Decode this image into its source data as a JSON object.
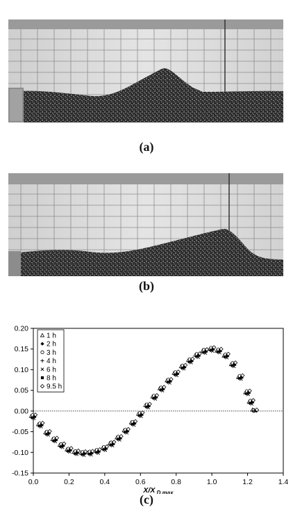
{
  "figure": {
    "caption_a": "(a)",
    "caption_b": "(b)",
    "caption_c": "(c)"
  },
  "chart_data": {
    "type": "scatter",
    "title": "",
    "xlabel": "X/X D,max",
    "ylabel": "",
    "xlim": [
      0.0,
      1.4
    ],
    "ylim": [
      -0.15,
      0.2
    ],
    "x_ticks": [
      "0.0",
      "0.2",
      "0.4",
      "0.6",
      "0.8",
      "1.0",
      "1.2",
      "1.4"
    ],
    "y_ticks": [
      "-0.15",
      "-0.10",
      "-0.05",
      "0.00",
      "0.05",
      "0.10",
      "0.15",
      "0.20"
    ],
    "zero_line": true,
    "legend_position": "top-left",
    "x": [
      0.0,
      0.04,
      0.08,
      0.12,
      0.16,
      0.2,
      0.24,
      0.28,
      0.32,
      0.36,
      0.4,
      0.44,
      0.48,
      0.52,
      0.56,
      0.6,
      0.64,
      0.68,
      0.72,
      0.76,
      0.8,
      0.84,
      0.88,
      0.92,
      0.96,
      1.0,
      1.04,
      1.08,
      1.12,
      1.16,
      1.2,
      1.22,
      1.24
    ],
    "series": [
      {
        "name": "1 h",
        "marker": "triangle",
        "values": [
          -0.012,
          -0.032,
          -0.052,
          -0.068,
          -0.082,
          -0.093,
          -0.099,
          -0.101,
          -0.1,
          -0.096,
          -0.089,
          -0.078,
          -0.064,
          -0.047,
          -0.028,
          -0.007,
          0.014,
          0.035,
          0.055,
          0.074,
          0.092,
          0.108,
          0.123,
          0.136,
          0.146,
          0.15,
          0.146,
          0.134,
          0.113,
          0.082,
          0.045,
          0.022,
          0.003
        ]
      },
      {
        "name": "2 h",
        "marker": "diamond",
        "values": [
          -0.016,
          -0.036,
          -0.056,
          -0.072,
          -0.086,
          -0.097,
          -0.103,
          -0.105,
          -0.104,
          -0.1,
          -0.093,
          -0.082,
          -0.068,
          -0.051,
          -0.032,
          -0.011,
          0.01,
          0.031,
          0.051,
          0.07,
          0.088,
          0.104,
          0.119,
          0.132,
          0.142,
          0.147,
          0.143,
          0.131,
          0.11,
          0.079,
          0.042,
          0.019,
          0.0
        ]
      },
      {
        "name": "3 h",
        "marker": "circle",
        "values": [
          -0.01,
          -0.03,
          -0.05,
          -0.066,
          -0.08,
          -0.091,
          -0.097,
          -0.099,
          -0.098,
          -0.094,
          -0.087,
          -0.076,
          -0.062,
          -0.045,
          -0.026,
          -0.005,
          0.016,
          0.037,
          0.057,
          0.076,
          0.094,
          0.11,
          0.125,
          0.138,
          0.148,
          0.153,
          0.149,
          0.137,
          0.116,
          0.085,
          0.048,
          0.025,
          0.002
        ]
      },
      {
        "name": "4 h",
        "marker": "plus",
        "values": [
          -0.014,
          -0.034,
          -0.054,
          -0.07,
          -0.084,
          -0.095,
          -0.101,
          -0.103,
          -0.102,
          -0.098,
          -0.091,
          -0.08,
          -0.066,
          -0.049,
          -0.03,
          -0.009,
          0.012,
          0.033,
          0.053,
          0.072,
          0.09,
          0.106,
          0.121,
          0.134,
          0.144,
          0.149,
          0.145,
          0.133,
          0.112,
          0.081,
          0.044,
          0.021,
          0.001
        ]
      },
      {
        "name": "6 h",
        "marker": "cross",
        "values": [
          -0.018,
          -0.038,
          -0.058,
          -0.074,
          -0.088,
          -0.099,
          -0.105,
          -0.107,
          -0.106,
          -0.102,
          -0.095,
          -0.084,
          -0.07,
          -0.053,
          -0.034,
          -0.013,
          0.008,
          0.029,
          0.049,
          0.068,
          0.086,
          0.102,
          0.117,
          0.13,
          0.14,
          0.145,
          0.141,
          0.129,
          0.108,
          0.077,
          0.04,
          0.017,
          0.0
        ]
      },
      {
        "name": "8 h",
        "marker": "square",
        "values": [
          -0.013,
          -0.033,
          -0.053,
          -0.069,
          -0.083,
          -0.094,
          -0.1,
          -0.102,
          -0.101,
          -0.097,
          -0.09,
          -0.079,
          -0.065,
          -0.048,
          -0.029,
          -0.008,
          0.013,
          0.034,
          0.054,
          0.073,
          0.091,
          0.107,
          0.122,
          0.135,
          0.145,
          0.15,
          0.146,
          0.134,
          0.113,
          0.082,
          0.045,
          0.022,
          0.001
        ]
      },
      {
        "name": "9.5 h",
        "marker": "diamond-open",
        "values": [
          -0.009,
          -0.029,
          -0.049,
          -0.065,
          -0.079,
          -0.09,
          -0.096,
          -0.098,
          -0.097,
          -0.093,
          -0.086,
          -0.075,
          -0.061,
          -0.044,
          -0.025,
          -0.004,
          0.017,
          0.038,
          0.058,
          0.077,
          0.095,
          0.111,
          0.126,
          0.139,
          0.149,
          0.154,
          0.15,
          0.138,
          0.117,
          0.086,
          0.049,
          0.026,
          0.003
        ]
      }
    ]
  }
}
